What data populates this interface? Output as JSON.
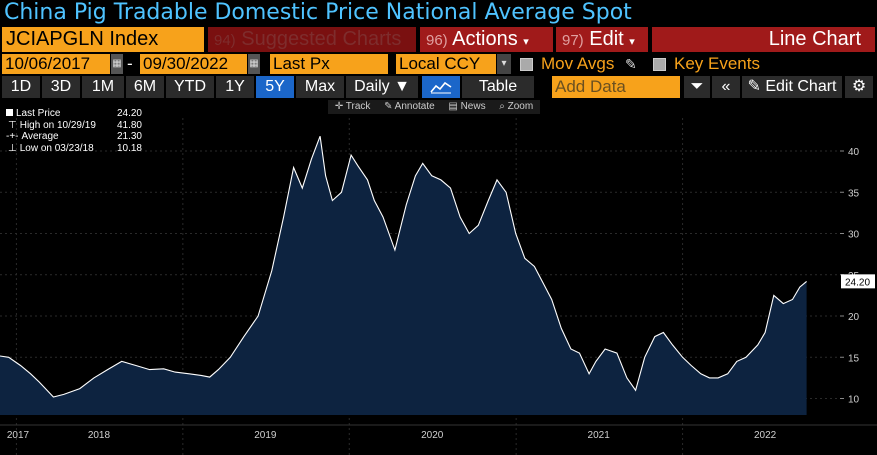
{
  "title": "China Pig Tradable Domestic Price National Average Spot",
  "toolbar": {
    "ticker": "JCIAPGLN Index",
    "suggested_num": "94)",
    "suggested_label": "Suggested Charts",
    "actions_num": "96)",
    "actions_label": "Actions",
    "edit_num": "97)",
    "edit_label": "Edit",
    "chart_type": "Line Chart"
  },
  "range": {
    "start_date": "10/06/2017",
    "end_date": "09/30/2022",
    "separator": "-",
    "price_field": "Last Px",
    "currency": "Local CCY",
    "mov_avgs": "Mov Avgs",
    "key_events": "Key Events"
  },
  "periods": [
    "1D",
    "3D",
    "1M",
    "6M",
    "YTD",
    "1Y",
    "5Y",
    "Max"
  ],
  "active_period": "5Y",
  "frequency": "Daily",
  "table_label": "Table",
  "add_data_placeholder": "Add Data",
  "edit_chart_label": "Edit Chart",
  "chart_tools": [
    "Track",
    "Annotate",
    "News",
    "Zoom"
  ],
  "legend": [
    {
      "label": "Last Price",
      "value": "24.20"
    },
    {
      "label": "High on 10/29/19",
      "value": "41.80"
    },
    {
      "label": "Average",
      "value": "21.30"
    },
    {
      "label": "Low on 03/23/18",
      "value": "10.18"
    }
  ],
  "colors": {
    "accent": "#f7a21b",
    "title": "#4fc3ff",
    "area_fill": "#0d2340",
    "line": "#ffffff",
    "active": "#1b66c9",
    "action_red": "#a01a1a"
  },
  "chart_data": {
    "type": "area",
    "ylim": [
      8,
      44
    ],
    "yticks": [
      10,
      15,
      20,
      25,
      30,
      35,
      40
    ],
    "xlabels": [
      "2017",
      "2018",
      "2019",
      "2020",
      "2021",
      "2022"
    ],
    "last_value_label": "24.20",
    "series": [
      {
        "x": [
          "2017-10-06",
          "2017-11-01",
          "2017-11-20",
          "2017-12-15",
          "2018-01-10",
          "2018-02-01",
          "2018-02-20",
          "2018-03-23",
          "2018-04-15",
          "2018-05-20",
          "2018-06-20",
          "2018-07-20",
          "2018-08-20",
          "2018-09-20",
          "2018-10-20",
          "2018-11-20",
          "2018-12-15",
          "2019-01-15",
          "2019-02-10",
          "2019-03-01",
          "2019-03-20",
          "2019-04-15",
          "2019-05-15",
          "2019-06-15",
          "2019-07-15",
          "2019-08-10",
          "2019-09-01",
          "2019-09-20",
          "2019-10-10",
          "2019-10-29",
          "2019-11-10",
          "2019-11-25",
          "2019-12-15",
          "2020-01-05",
          "2020-01-20",
          "2020-02-10",
          "2020-02-25",
          "2020-03-15",
          "2020-04-10",
          "2020-05-05",
          "2020-05-25",
          "2020-06-10",
          "2020-06-30",
          "2020-07-20",
          "2020-08-10",
          "2020-08-31",
          "2020-09-20",
          "2020-10-10",
          "2020-11-01",
          "2020-11-20",
          "2020-12-10",
          "2020-12-31",
          "2021-01-20",
          "2021-02-10",
          "2021-03-01",
          "2021-03-20",
          "2021-04-10",
          "2021-05-01",
          "2021-05-20",
          "2021-06-10",
          "2021-06-25",
          "2021-07-15",
          "2021-08-10",
          "2021-09-01",
          "2021-09-20",
          "2021-10-10",
          "2021-11-01",
          "2021-11-20",
          "2021-12-10",
          "2022-01-01",
          "2022-01-20",
          "2022-02-10",
          "2022-03-01",
          "2022-03-20",
          "2022-04-10",
          "2022-04-30",
          "2022-05-20",
          "2022-06-15",
          "2022-07-01",
          "2022-07-20",
          "2022-08-10",
          "2022-08-30",
          "2022-09-15",
          "2022-09-30"
        ],
        "y": [
          14.2,
          14.5,
          15.2,
          15.0,
          14.0,
          13.0,
          12.0,
          10.18,
          10.5,
          11.2,
          12.5,
          13.5,
          14.5,
          14.0,
          13.5,
          13.6,
          13.2,
          13.0,
          12.8,
          12.6,
          13.5,
          15.0,
          17.5,
          20.0,
          25.5,
          32.0,
          38.0,
          35.5,
          39.0,
          41.8,
          37.0,
          34.0,
          35.0,
          39.5,
          38.2,
          36.5,
          34.0,
          32.0,
          28.0,
          33.5,
          37.0,
          38.5,
          37.0,
          36.5,
          35.5,
          32.0,
          30.0,
          31.0,
          34.0,
          36.5,
          35.0,
          30.0,
          27.0,
          26.0,
          24.0,
          22.0,
          18.5,
          16.0,
          15.5,
          13.0,
          14.5,
          16.0,
          15.5,
          12.5,
          11.0,
          15.0,
          17.5,
          18.0,
          16.5,
          15.0,
          14.0,
          13.0,
          12.5,
          12.5,
          13.0,
          14.5,
          15.0,
          16.5,
          18.0,
          22.5,
          21.5,
          22.0,
          23.5,
          24.2
        ]
      }
    ]
  }
}
